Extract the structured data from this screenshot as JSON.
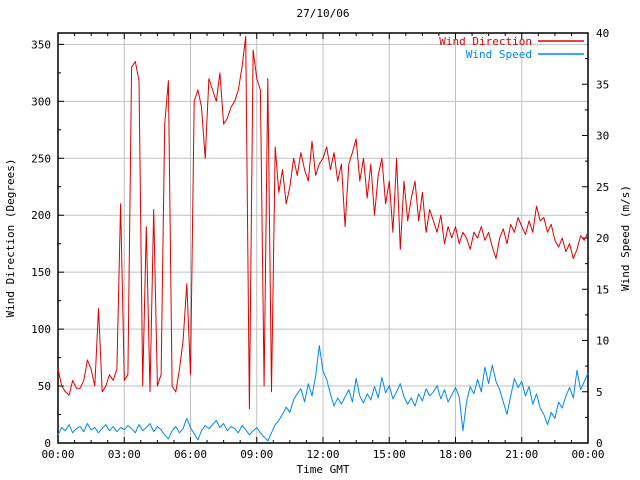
{
  "chart_data": {
    "type": "line",
    "title": "27/10/06",
    "xlabel": "Time GMT",
    "background": "#ffffff",
    "grid": true,
    "grid_color": "#c0c0c0",
    "x_axis": {
      "range_hours": [
        0,
        24
      ],
      "tick_labels": [
        "00:00",
        "03:00",
        "06:00",
        "09:00",
        "12:00",
        "15:00",
        "18:00",
        "21:00",
        "00:00"
      ],
      "major_tick_hours": 3,
      "minor_tick_minutes": 45
    },
    "axes": {
      "left": {
        "label": "Wind Direction (Degrees)",
        "range": [
          0,
          360
        ],
        "tick_step": 50,
        "minor_step": 25,
        "tick_labels": [
          "0",
          "50",
          "100",
          "150",
          "200",
          "250",
          "300",
          "350"
        ]
      },
      "right": {
        "label": "Wind Speed (m/s)",
        "range": [
          0,
          40
        ],
        "tick_step": 5,
        "minor_step": 2.5,
        "tick_labels": [
          "0",
          "5",
          "10",
          "15",
          "20",
          "25",
          "30",
          "35",
          "40"
        ]
      }
    },
    "legend": {
      "position": "top-right-inside",
      "entries": [
        {
          "label": "Wind Direction",
          "color": "#dd0000"
        },
        {
          "label": "Wind Speed",
          "color": "#0088ee"
        }
      ]
    },
    "series": [
      {
        "name": "Wind Direction",
        "axis": "left",
        "color": "#dd0000",
        "start_hour": 0,
        "interval_minutes": 10,
        "values": [
          65,
          50,
          45,
          42,
          55,
          48,
          48,
          55,
          73,
          65,
          50,
          118,
          45,
          50,
          60,
          55,
          65,
          210,
          55,
          60,
          330,
          335,
          318,
          50,
          190,
          45,
          205,
          50,
          60,
          280,
          318,
          50,
          45,
          65,
          90,
          140,
          60,
          300,
          310,
          295,
          250,
          320,
          310,
          300,
          325,
          280,
          285,
          295,
          300,
          310,
          330,
          357,
          30,
          345,
          320,
          310,
          50,
          320,
          45,
          260,
          220,
          240,
          210,
          225,
          250,
          235,
          255,
          240,
          230,
          265,
          235,
          245,
          250,
          260,
          240,
          255,
          230,
          245,
          190,
          245,
          255,
          267,
          230,
          250,
          215,
          245,
          200,
          235,
          250,
          210,
          230,
          185,
          250,
          170,
          230,
          195,
          215,
          230,
          195,
          220,
          185,
          205,
          195,
          185,
          200,
          175,
          190,
          180,
          190,
          175,
          185,
          180,
          170,
          185,
          180,
          190,
          178,
          185,
          172,
          162,
          180,
          188,
          175,
          192,
          185,
          198,
          190,
          183,
          195,
          185,
          208,
          195,
          198,
          185,
          192,
          178,
          172,
          180,
          168,
          175,
          162,
          170,
          182,
          178,
          185
        ]
      },
      {
        "name": "Wind Speed",
        "axis": "right",
        "color": "#0088ee",
        "start_hour": 0,
        "interval_minutes": 10,
        "values": [
          0.8,
          1.5,
          1.2,
          1.8,
          1.0,
          1.4,
          1.6,
          1.1,
          1.9,
          1.3,
          1.5,
          1.0,
          1.4,
          1.8,
          1.2,
          1.6,
          1.1,
          1.5,
          1.3,
          1.7,
          1.4,
          1.0,
          1.8,
          1.2,
          1.5,
          1.9,
          1.1,
          1.6,
          1.3,
          0.8,
          0.4,
          1.2,
          1.6,
          1.0,
          1.4,
          2.4,
          1.5,
          0.9,
          0.3,
          1.2,
          1.7,
          1.4,
          1.8,
          2.2,
          1.5,
          1.9,
          1.2,
          1.6,
          1.4,
          1.0,
          1.7,
          1.3,
          0.8,
          1.2,
          1.5,
          1.0,
          0.6,
          0.2,
          1.0,
          1.8,
          2.2,
          2.8,
          3.5,
          3.0,
          4.2,
          4.8,
          5.3,
          4.0,
          5.8,
          4.6,
          6.5,
          9.5,
          7.0,
          6.2,
          4.8,
          3.6,
          4.4,
          3.8,
          4.5,
          5.2,
          4.0,
          6.3,
          4.6,
          3.9,
          4.8,
          4.2,
          5.5,
          4.4,
          6.4,
          4.9,
          5.6,
          4.3,
          5.0,
          5.8,
          4.5,
          3.8,
          4.4,
          3.6,
          4.8,
          4.1,
          5.3,
          4.6,
          5.0,
          5.6,
          4.3,
          5.2,
          4.0,
          4.7,
          5.4,
          4.5,
          1.2,
          4.0,
          5.5,
          4.8,
          6.2,
          5.0,
          7.4,
          5.8,
          7.6,
          6.0,
          5.2,
          4.0,
          2.8,
          4.6,
          6.3,
          5.4,
          6.0,
          4.6,
          5.5,
          3.8,
          4.8,
          3.4,
          2.8,
          1.8,
          3.0,
          2.4,
          4.0,
          3.4,
          4.6,
          5.4,
          4.4,
          7.1,
          5.2,
          6.0,
          6.8
        ]
      }
    ]
  }
}
